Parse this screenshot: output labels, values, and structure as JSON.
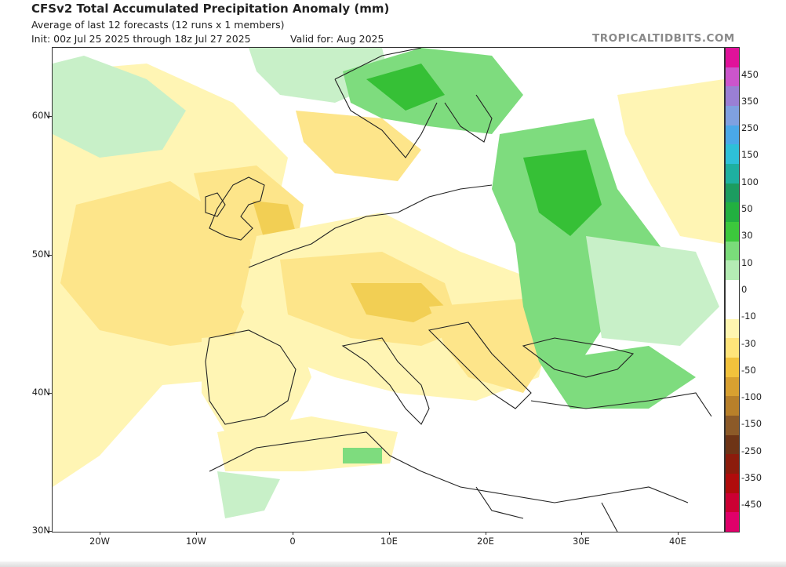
{
  "header": {
    "title": "CFSv2 Total Accumulated Precipitation Anomaly (mm)",
    "subtitle": "Average of last 12 forecasts (12 runs x 1 members)",
    "init": "Init: 00z Jul 25 2025 through 18z Jul 27 2025",
    "valid": "Valid for: Aug 2025",
    "brand": "TROPICALTIDBITS.COM"
  },
  "axes": {
    "lat_labels": [
      "60N",
      "50N",
      "40N",
      "30N"
    ],
    "lon_labels": [
      "20W",
      "10W",
      "0",
      "10E",
      "20E",
      "30E",
      "40E"
    ]
  },
  "colorbar": {
    "labels": [
      "450",
      "350",
      "250",
      "150",
      "100",
      "50",
      "30",
      "10",
      "0",
      "-10",
      "-30",
      "-50",
      "-100",
      "-150",
      "-250",
      "-350",
      "-450"
    ],
    "colors": [
      "#e0129a",
      "#cc55cc",
      "#9a7fd4",
      "#7fa0e0",
      "#4aa8e8",
      "#2ec0d8",
      "#1eb0a0",
      "#1c9c60",
      "#22b040",
      "#3cc83c",
      "#7adc7a",
      "#b4ecb4",
      "#ffffff",
      "#ffffff",
      "#fff6b0",
      "#ffe47a",
      "#f2c23c",
      "#d8a030",
      "#b8802a",
      "#8c5a28",
      "#6e3416",
      "#8c1c0c",
      "#b00c0c",
      "#cc0033",
      "#e0006a"
    ]
  },
  "map": {
    "region": "Europe",
    "anomaly_colors": {
      "dry_light": "#fff5b4",
      "dry_moderate": "#fde58a",
      "dry_strong": "#f2cf54",
      "wet_light": "#c8f0c8",
      "wet_moderate": "#7edc7e",
      "wet_strong": "#36c036"
    }
  }
}
